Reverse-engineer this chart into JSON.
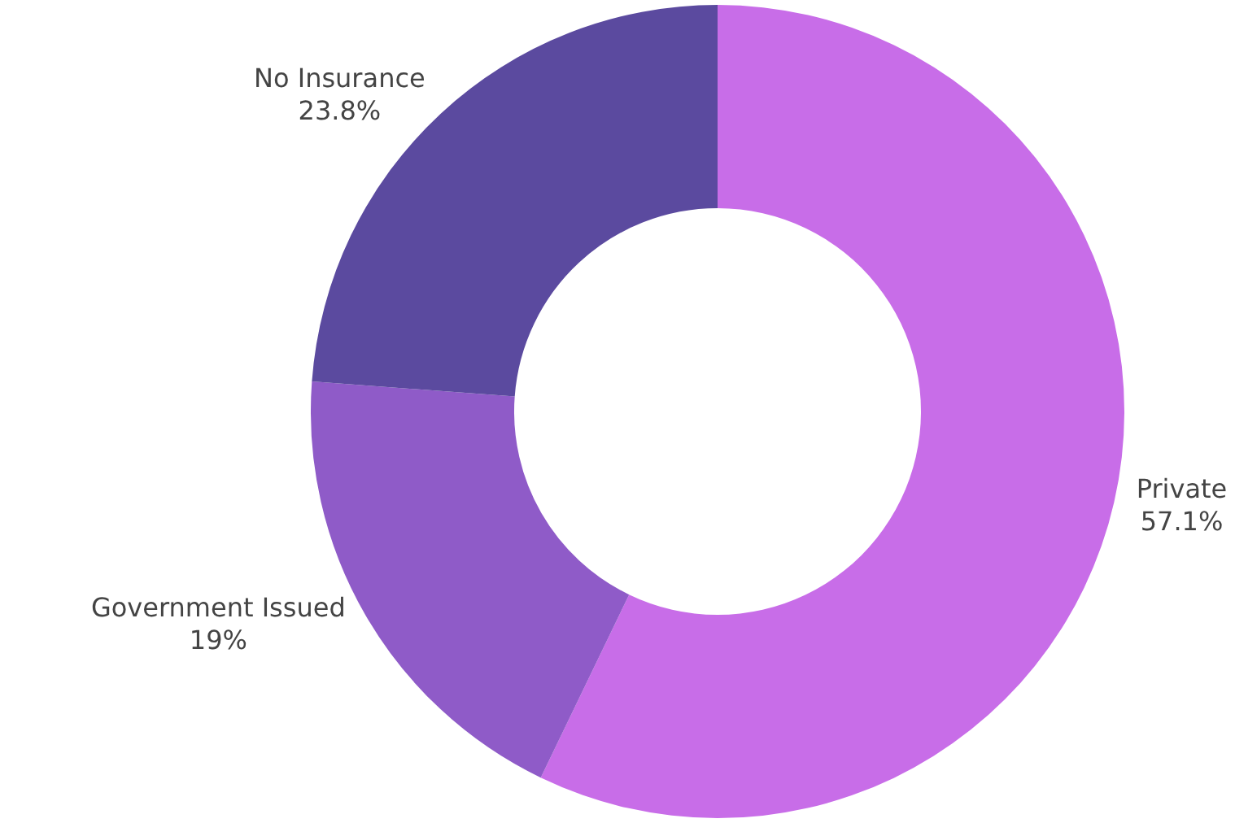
{
  "chart_data": {
    "type": "donut",
    "categories": [
      "Private",
      "Government Issued",
      "No Insurance"
    ],
    "values": [
      57.1,
      19,
      23.8
    ],
    "colors": [
      "#c86de8",
      "#8f5bc8",
      "#5b4a9f"
    ],
    "value_labels": [
      "57.1%",
      "19%",
      "23.8%"
    ],
    "legend": false
  }
}
